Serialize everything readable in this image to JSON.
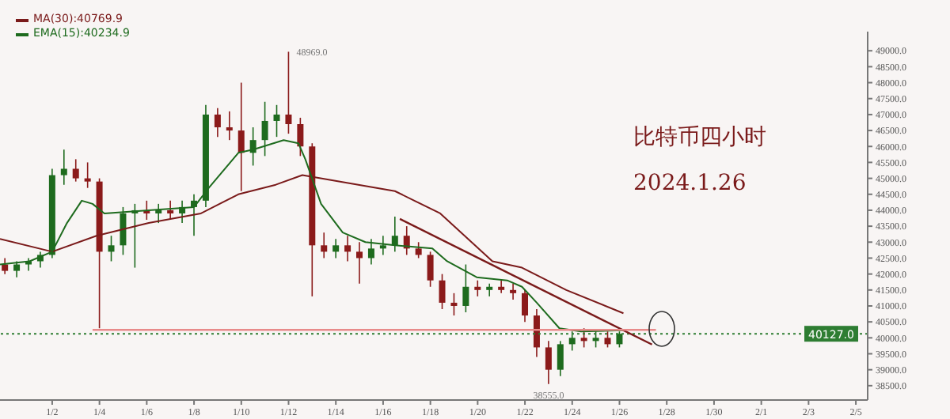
{
  "chart_data": {
    "type": "candlestick",
    "title": "比特币四小时",
    "subtitle": "2024.1.26",
    "x": [
      "2023-12-31T00:00",
      "2023-12-31T12:00",
      "2024-01-01T00:00",
      "2024-01-01T12:00",
      "2024-01-02T00:00",
      "2024-01-02T12:00",
      "2024-01-03T00:00",
      "2024-01-03T12:00",
      "2024-01-04T00:00",
      "2024-01-04T12:00",
      "2024-01-05T00:00",
      "2024-01-05T12:00",
      "2024-01-06T00:00",
      "2024-01-06T12:00",
      "2024-01-07T00:00",
      "2024-01-07T12:00",
      "2024-01-08T00:00",
      "2024-01-08T12:00",
      "2024-01-09T00:00",
      "2024-01-09T12:00",
      "2024-01-10T00:00",
      "2024-01-10T12:00",
      "2024-01-11T00:00",
      "2024-01-11T12:00",
      "2024-01-12T00:00",
      "2024-01-12T12:00",
      "2024-01-13T00:00",
      "2024-01-13T12:00",
      "2024-01-14T00:00",
      "2024-01-14T12:00",
      "2024-01-15T00:00",
      "2024-01-15T12:00",
      "2024-01-16T00:00",
      "2024-01-16T12:00",
      "2024-01-17T00:00",
      "2024-01-17T12:00",
      "2024-01-18T00:00",
      "2024-01-18T12:00",
      "2024-01-19T00:00",
      "2024-01-19T12:00",
      "2024-01-20T00:00",
      "2024-01-20T12:00",
      "2024-01-21T00:00",
      "2024-01-21T12:00",
      "2024-01-22T00:00",
      "2024-01-22T12:00",
      "2024-01-23T00:00",
      "2024-01-23T12:00",
      "2024-01-24T00:00",
      "2024-01-24T12:00",
      "2024-01-25T00:00",
      "2024-01-25T12:00",
      "2024-01-26T00:00"
    ],
    "ohlc": [
      [
        42300,
        42500,
        42000,
        42100
      ],
      [
        42100,
        42400,
        41900,
        42300
      ],
      [
        42300,
        42500,
        42100,
        42400
      ],
      [
        42400,
        42700,
        42200,
        42600
      ],
      [
        42600,
        45300,
        42500,
        45100
      ],
      [
        45100,
        45900,
        44800,
        45300
      ],
      [
        45300,
        45600,
        44900,
        45000
      ],
      [
        45000,
        45500,
        44700,
        44900
      ],
      [
        44900,
        45000,
        40300,
        42700
      ],
      [
        42700,
        43200,
        42400,
        42900
      ],
      [
        42900,
        44100,
        42600,
        43900
      ],
      [
        43900,
        44200,
        42200,
        44000
      ],
      [
        44000,
        44300,
        43700,
        43900
      ],
      [
        43900,
        44200,
        43600,
        44000
      ],
      [
        44000,
        44300,
        43700,
        43900
      ],
      [
        43900,
        44300,
        43600,
        44100
      ],
      [
        44100,
        44500,
        43200,
        44300
      ],
      [
        44300,
        47300,
        44100,
        47000
      ],
      [
        47000,
        47200,
        46300,
        46600
      ],
      [
        46600,
        47100,
        46200,
        46500
      ],
      [
        46500,
        48000,
        44600,
        45800
      ],
      [
        45800,
        46600,
        45400,
        46200
      ],
      [
        46200,
        47400,
        45700,
        46800
      ],
      [
        46800,
        47300,
        46300,
        47000
      ],
      [
        47000,
        48969,
        46400,
        46700
      ],
      [
        46700,
        46900,
        45700,
        46000
      ],
      [
        46000,
        46100,
        41300,
        42900
      ],
      [
        42900,
        43300,
        42500,
        42700
      ],
      [
        42700,
        43100,
        42500,
        42900
      ],
      [
        42900,
        43200,
        42400,
        42700
      ],
      [
        42700,
        43000,
        41700,
        42500
      ],
      [
        42500,
        43100,
        42300,
        42800
      ],
      [
        42800,
        43200,
        42600,
        42900
      ],
      [
        42900,
        43800,
        42700,
        43200
      ],
      [
        43200,
        43500,
        42600,
        42800
      ],
      [
        42800,
        43000,
        42500,
        42600
      ],
      [
        42600,
        42700,
        41600,
        41800
      ],
      [
        41800,
        42000,
        40900,
        41100
      ],
      [
        41100,
        41400,
        40700,
        41000
      ],
      [
        41000,
        42300,
        40800,
        41600
      ],
      [
        41600,
        41800,
        41300,
        41500
      ],
      [
        41500,
        41700,
        41300,
        41600
      ],
      [
        41600,
        41800,
        41400,
        41500
      ],
      [
        41500,
        41700,
        41200,
        41400
      ],
      [
        41400,
        41500,
        40500,
        40700
      ],
      [
        40700,
        40900,
        39400,
        39700
      ],
      [
        39700,
        39900,
        38555,
        39000
      ],
      [
        39000,
        39900,
        38800,
        39800
      ],
      [
        39800,
        40200,
        39600,
        40000
      ],
      [
        40000,
        40300,
        39700,
        39900
      ],
      [
        39900,
        40200,
        39700,
        40000
      ],
      [
        40000,
        40200,
        39700,
        39800
      ],
      [
        39800,
        40200,
        39700,
        40127
      ]
    ],
    "colors": [
      "#8b1a1a",
      "#1e6b1e",
      "#1e6b1e",
      "#1e6b1e",
      "#1e6b1e",
      "#1e6b1e",
      "#8b1a1a",
      "#8b1a1a",
      "#8b1a1a",
      "#1e6b1e",
      "#1e6b1e",
      "#1e6b1e",
      "#8b1a1a",
      "#1e6b1e",
      "#8b1a1a",
      "#1e6b1e",
      "#1e6b1e",
      "#1e6b1e",
      "#8b1a1a",
      "#8b1a1a",
      "#8b1a1a",
      "#1e6b1e",
      "#1e6b1e",
      "#1e6b1e",
      "#8b1a1a",
      "#8b1a1a",
      "#8b1a1a",
      "#8b1a1a",
      "#1e6b1e",
      "#8b1a1a",
      "#8b1a1a",
      "#1e6b1e",
      "#1e6b1e",
      "#1e6b1e",
      "#8b1a1a",
      "#8b1a1a",
      "#8b1a1a",
      "#8b1a1a",
      "#8b1a1a",
      "#1e6b1e",
      "#8b1a1a",
      "#1e6b1e",
      "#8b1a1a",
      "#8b1a1a",
      "#8b1a1a",
      "#8b1a1a",
      "#8b1a1a",
      "#1e6b1e",
      "#1e6b1e",
      "#8b1a1a",
      "#1e6b1e",
      "#8b1a1a",
      "#1e6b1e"
    ],
    "series": [
      {
        "type": "line",
        "name": "MA(30):40769.9",
        "color": "#7a1a1a",
        "x": [
          "2023-12-30T19:00",
          "2024-01-02T00:00",
          "2024-01-03T21:00",
          "2024-01-06T02:00",
          "2024-01-08T07:00",
          "2024-01-09T21:00",
          "2024-01-11T11:00",
          "2024-01-12T14:00",
          "2024-01-16T12:00",
          "2024-01-18T10:00",
          "2024-01-20T15:00",
          "2024-01-21T21:00",
          "2024-01-23T18:00",
          "2024-01-26T04:00"
        ],
        "values": [
          43100,
          42700,
          43200,
          43600,
          43900,
          44500,
          44800,
          45100,
          44600,
          43900,
          42400,
          42200,
          41500,
          40770
        ]
      },
      {
        "type": "line",
        "name": "EMA(15):40234.9",
        "color": "#1e6b1e",
        "x": [
          "2023-12-30T19:00",
          "2024-01-01T01:00",
          "2024-01-02T00:00",
          "2024-01-02T15:00",
          "2024-01-03T06:00",
          "2024-01-03T17:00",
          "2024-01-04T05:00",
          "2024-01-06T02:00",
          "2024-01-08T00:00",
          "2024-01-08T15:00",
          "2024-01-09T21:00",
          "2024-01-10T12:00",
          "2024-01-11T19:00",
          "2024-01-12T10:00",
          "2024-01-12T17:00",
          "2024-01-13T09:00",
          "2024-01-14T07:00",
          "2024-01-15T06:00",
          "2024-01-16T12:00",
          "2024-01-18T02:00",
          "2024-01-18T17:00",
          "2024-01-19T23:00",
          "2024-01-21T06:00",
          "2024-01-21T21:00",
          "2024-01-22T12:00",
          "2024-01-23T11:00",
          "2024-01-24T09:00",
          "2024-01-26T04:00"
        ],
        "values": [
          42300,
          42400,
          42700,
          43600,
          44300,
          44200,
          43900,
          44000,
          44100,
          44700,
          45800,
          45900,
          46200,
          46100,
          45600,
          44200,
          43300,
          43000,
          42900,
          42800,
          42400,
          41900,
          41800,
          41600,
          41100,
          40300,
          40200,
          40235
        ]
      },
      {
        "type": "line",
        "color": "#7a1a1a",
        "x": [
          "2024-01-16T17:00",
          "2024-01-27T09:00"
        ],
        "values": [
          43730,
          39790
        ]
      },
      {
        "type": "line",
        "color": "#e88a8a",
        "x": [
          "2024-01-03T17:00",
          "2024-01-27T13:00"
        ],
        "values": [
          40250,
          40250
        ]
      }
    ],
    "ref_lines": [
      {
        "axis": "y",
        "value": 40127,
        "label": "40127.0",
        "color": "#2e7d32",
        "line_style": "dotted"
      }
    ],
    "annotations": [
      {
        "text": "48969.0",
        "x": "2024-01-12T00:00",
        "y": 48969
      },
      {
        "text": "38555.0",
        "x": "2024-01-23T00:00",
        "y": 38555
      }
    ],
    "xlim": [
      "2023-12-30T19:00",
      "2024-02-05T12:00"
    ],
    "xticks": [
      {
        "value": "2024-01-02",
        "label": "1/2"
      },
      {
        "value": "2024-01-04",
        "label": "1/4"
      },
      {
        "value": "2024-01-06",
        "label": "1/6"
      },
      {
        "value": "2024-01-08",
        "label": "1/8"
      },
      {
        "value": "2024-01-10",
        "label": "1/10"
      },
      {
        "value": "2024-01-12",
        "label": "1/12"
      },
      {
        "value": "2024-01-14",
        "label": "1/14"
      },
      {
        "value": "2024-01-16",
        "label": "1/16"
      },
      {
        "value": "2024-01-18",
        "label": "1/18"
      },
      {
        "value": "2024-01-20",
        "label": "1/20"
      },
      {
        "value": "2024-01-22",
        "label": "1/22"
      },
      {
        "value": "2024-01-24",
        "label": "1/24"
      },
      {
        "value": "2024-01-26",
        "label": "1/26"
      },
      {
        "value": "2024-01-28",
        "label": "1/28"
      },
      {
        "value": "2024-01-30",
        "label": "1/30"
      },
      {
        "value": "2024-02-01",
        "label": "2/1"
      },
      {
        "value": "2024-02-03",
        "label": "2/3"
      },
      {
        "value": "2024-02-05",
        "label": "2/5"
      }
    ],
    "ylim": [
      38050,
      49600
    ],
    "yticks": [
      {
        "value": 38500,
        "label": "38500.0"
      },
      {
        "value": 39000,
        "label": "39000.0"
      },
      {
        "value": 39500,
        "label": "39500.0"
      },
      {
        "value": 40000,
        "label": "40000.0"
      },
      {
        "value": 40500,
        "label": "40500.0"
      },
      {
        "value": 41000,
        "label": "41000.0"
      },
      {
        "value": 41500,
        "label": "41500.0"
      },
      {
        "value": 42000,
        "label": "42000.0"
      },
      {
        "value": 42500,
        "label": "42500.0"
      },
      {
        "value": 43000,
        "label": "43000.0"
      },
      {
        "value": 43500,
        "label": "43500.0"
      },
      {
        "value": 44000,
        "label": "44000.0"
      },
      {
        "value": 44500,
        "label": "44500.0"
      },
      {
        "value": 45000,
        "label": "45000.0"
      },
      {
        "value": 45500,
        "label": "45500.0"
      },
      {
        "value": 46000,
        "label": "46000.0"
      },
      {
        "value": 46500,
        "label": "46500.0"
      },
      {
        "value": 47000,
        "label": "47000.0"
      },
      {
        "value": 47500,
        "label": "47500.0"
      },
      {
        "value": 48000,
        "label": "48000.0"
      },
      {
        "value": 48500,
        "label": "48500.0"
      },
      {
        "value": 49000,
        "label": "49000.0"
      }
    ],
    "legend": "top left"
  }
}
